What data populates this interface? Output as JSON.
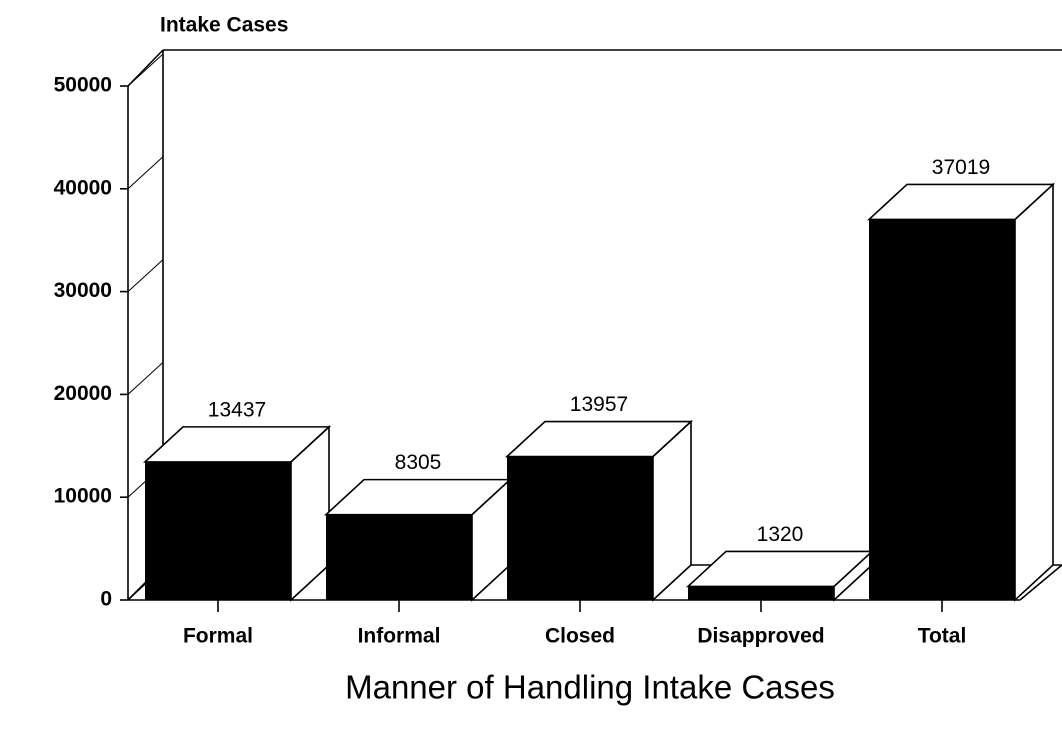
{
  "chart_data": {
    "type": "bar",
    "title": "Intake Cases",
    "x_label": "Manner of Handling Intake Cases",
    "categories": [
      "Formal",
      "Informal",
      "Closed",
      "Disapproved",
      "Total"
    ],
    "values": [
      13437,
      8305,
      13957,
      1320,
      37019
    ],
    "color": "#000000",
    "ylim": [
      0,
      50000
    ],
    "yticks": [
      0,
      10000,
      20000,
      30000,
      40000,
      50000
    ],
    "grid": false
  }
}
